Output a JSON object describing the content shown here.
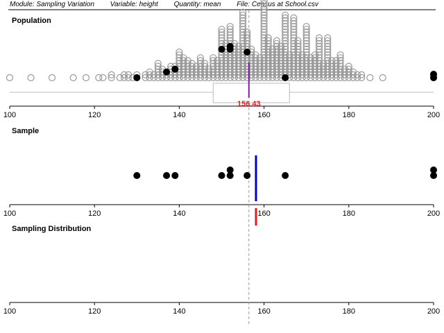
{
  "header": {
    "module": "Module: Sampling Variation",
    "variable": "Variable: height",
    "quantity": "Quantity: mean",
    "file": "File: Census at School.csv"
  },
  "panels": {
    "population": "Population",
    "sample": "Sample",
    "sampling_distribution": "Sampling Distribution"
  },
  "colors": {
    "population_point": "#999999",
    "sample_point": "#000000",
    "population_mean": "#7b1fa2",
    "sample_mean": "#0000cc",
    "stat_mark": "#e41a1c",
    "mean_label": "#e41a1c",
    "axis": "#000000",
    "box": "#bbbbbb",
    "ref_line": "#999999"
  },
  "chart_data": [
    {
      "type": "scatter",
      "title": "Population",
      "xlabel": "",
      "ylabel": "",
      "xlim": [
        100,
        200
      ],
      "ticks": [
        100,
        120,
        140,
        160,
        180,
        200
      ],
      "population_mean": 156.43,
      "population_mean_label": "156.43",
      "box": {
        "q1": 148,
        "q3": 166
      },
      "dot_columns": [
        {
          "x": 100,
          "count": 1
        },
        {
          "x": 105,
          "count": 1
        },
        {
          "x": 110,
          "count": 1
        },
        {
          "x": 115,
          "count": 1
        },
        {
          "x": 118,
          "count": 1
        },
        {
          "x": 121,
          "count": 1
        },
        {
          "x": 122,
          "count": 1
        },
        {
          "x": 124,
          "count": 2
        },
        {
          "x": 126,
          "count": 1
        },
        {
          "x": 127,
          "count": 2
        },
        {
          "x": 128,
          "count": 2
        },
        {
          "x": 129,
          "count": 1
        },
        {
          "x": 130,
          "count": 2
        },
        {
          "x": 132,
          "count": 2
        },
        {
          "x": 133,
          "count": 3
        },
        {
          "x": 134,
          "count": 2
        },
        {
          "x": 135,
          "count": 6
        },
        {
          "x": 136,
          "count": 4
        },
        {
          "x": 137,
          "count": 3
        },
        {
          "x": 138,
          "count": 5
        },
        {
          "x": 139,
          "count": 5
        },
        {
          "x": 140,
          "count": 10
        },
        {
          "x": 141,
          "count": 8
        },
        {
          "x": 142,
          "count": 7
        },
        {
          "x": 143,
          "count": 6
        },
        {
          "x": 144,
          "count": 5
        },
        {
          "x": 145,
          "count": 8
        },
        {
          "x": 146,
          "count": 6
        },
        {
          "x": 147,
          "count": 4
        },
        {
          "x": 148,
          "count": 8
        },
        {
          "x": 149,
          "count": 7
        },
        {
          "x": 150,
          "count": 18
        },
        {
          "x": 151,
          "count": 13
        },
        {
          "x": 152,
          "count": 19
        },
        {
          "x": 153,
          "count": 13
        },
        {
          "x": 154,
          "count": 12
        },
        {
          "x": 155,
          "count": 24
        },
        {
          "x": 156,
          "count": 17
        },
        {
          "x": 157,
          "count": 11
        },
        {
          "x": 158,
          "count": 9
        },
        {
          "x": 159,
          "count": 8
        },
        {
          "x": 160,
          "count": 28
        },
        {
          "x": 161,
          "count": 15
        },
        {
          "x": 162,
          "count": 11
        },
        {
          "x": 163,
          "count": 14
        },
        {
          "x": 164,
          "count": 12
        },
        {
          "x": 165,
          "count": 23
        },
        {
          "x": 166,
          "count": 9
        },
        {
          "x": 167,
          "count": 22
        },
        {
          "x": 168,
          "count": 14
        },
        {
          "x": 169,
          "count": 9
        },
        {
          "x": 170,
          "count": 19
        },
        {
          "x": 171,
          "count": 8
        },
        {
          "x": 172,
          "count": 9
        },
        {
          "x": 173,
          "count": 15
        },
        {
          "x": 174,
          "count": 6
        },
        {
          "x": 175,
          "count": 15
        },
        {
          "x": 176,
          "count": 7
        },
        {
          "x": 177,
          "count": 7
        },
        {
          "x": 178,
          "count": 9
        },
        {
          "x": 179,
          "count": 4
        },
        {
          "x": 180,
          "count": 5
        },
        {
          "x": 181,
          "count": 3
        },
        {
          "x": 182,
          "count": 2
        },
        {
          "x": 183,
          "count": 2
        },
        {
          "x": 185,
          "count": 1
        },
        {
          "x": 188,
          "count": 1
        },
        {
          "x": 200,
          "count": 2
        }
      ],
      "sample_values": [
        130,
        137,
        139,
        150,
        152,
        152,
        156,
        165,
        200,
        200
      ]
    },
    {
      "type": "scatter",
      "title": "Sample",
      "xlabel": "",
      "ylabel": "",
      "xlim": [
        100,
        200
      ],
      "ticks": [
        100,
        120,
        140,
        160,
        180,
        200
      ],
      "values": [
        130,
        137,
        139,
        150,
        152,
        152,
        156,
        165,
        200,
        200
      ],
      "sample_mean": 158.1
    },
    {
      "type": "scatter",
      "title": "Sampling Distribution",
      "xlabel": "",
      "ylabel": "",
      "xlim": [
        100,
        200
      ],
      "ticks": [
        100,
        120,
        140,
        160,
        180,
        200
      ],
      "values": [
        158.1
      ]
    }
  ]
}
